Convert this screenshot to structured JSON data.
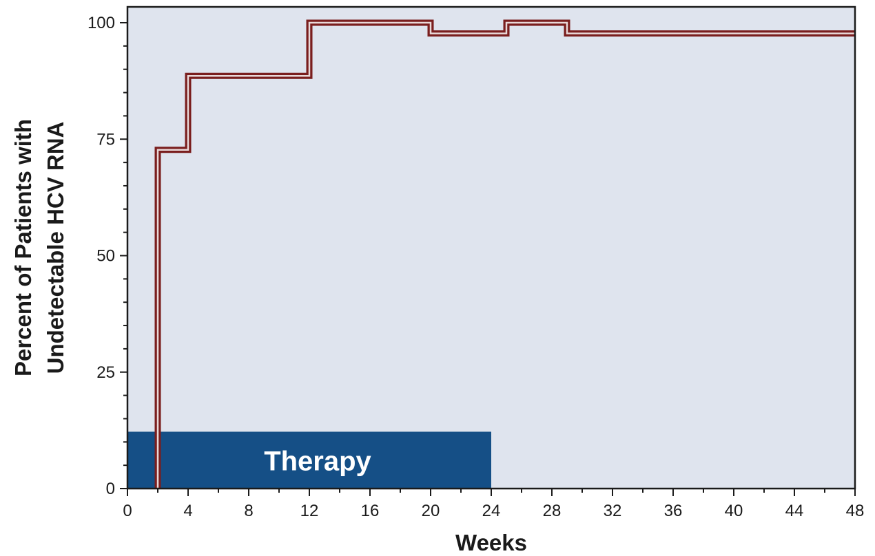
{
  "chart_data": {
    "type": "line",
    "step": true,
    "title": "",
    "xlabel": "Weeks",
    "ylabel_lines": [
      "Percent of Patients with",
      "Undetectable HCV RNA"
    ],
    "xlim": [
      0,
      48
    ],
    "ylim": [
      0,
      100
    ],
    "xticks": [
      0,
      4,
      8,
      12,
      16,
      20,
      24,
      28,
      32,
      36,
      40,
      44,
      48
    ],
    "yticks": [
      0,
      25,
      50,
      75,
      100
    ],
    "x_minor_step": 2,
    "y_minor_step": 5,
    "grid": false,
    "colors": {
      "plot_background": "#dfe4ee",
      "line": "#7a1e1e",
      "therapy_bar": "#154f86",
      "axis": "#1a1a1a"
    },
    "series": [
      {
        "points": [
          {
            "x": 2,
            "y": 0
          },
          {
            "x": 2,
            "y": 72.7
          },
          {
            "x": 4,
            "y": 72.7
          },
          {
            "x": 4,
            "y": 88.6
          },
          {
            "x": 12,
            "y": 88.6
          },
          {
            "x": 12,
            "y": 100
          },
          {
            "x": 20,
            "y": 100
          },
          {
            "x": 20,
            "y": 97.7
          },
          {
            "x": 25,
            "y": 97.7
          },
          {
            "x": 25,
            "y": 100
          },
          {
            "x": 29,
            "y": 100
          },
          {
            "x": 29,
            "y": 97.7
          },
          {
            "x": 48,
            "y": 97.7
          }
        ]
      }
    ],
    "annotations": [
      {
        "label": "Therapy",
        "x_start": 0,
        "x_end": 24,
        "y_top": 12.2
      }
    ]
  }
}
